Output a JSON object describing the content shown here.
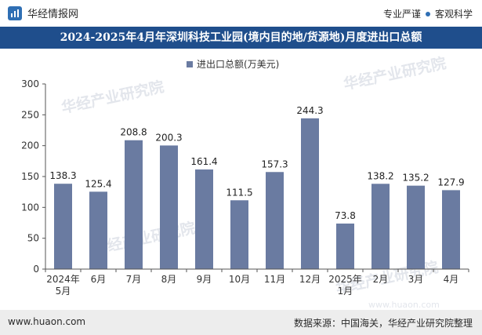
{
  "header": {
    "brand": "华经情报网",
    "tagline_part1": "专业严谨",
    "tagline_part2": "客观科学"
  },
  "title": "2024-2025年4月年深圳科技工业园(境内目的地/货源地)月度进出口总额",
  "footer": {
    "website": "www.huaon.com",
    "source": "数据来源：中国海关，华经产业研究院整理"
  },
  "watermark": {
    "text": "华经产业研究院",
    "url": "www.huaon.com"
  },
  "colors": {
    "bar": "#6a7ba1",
    "title_bg": "#1f4e8c",
    "brand": "#2f6fb4"
  },
  "chart_data": {
    "type": "bar",
    "title": "2024-2025年4月年深圳科技工业园(境内目的地/货源地)月度进出口总额",
    "legend": "进出口总额(万美元)",
    "legend_position": "top-center",
    "categories": [
      [
        "2024年",
        "5月"
      ],
      [
        "6月"
      ],
      [
        "7月"
      ],
      [
        "8月"
      ],
      [
        "9月"
      ],
      [
        "10月"
      ],
      [
        "11月"
      ],
      [
        "12月"
      ],
      [
        "2025年",
        "1月"
      ],
      [
        "2月"
      ],
      [
        "3月"
      ],
      [
        "4月"
      ]
    ],
    "values": [
      138.3,
      125.4,
      208.8,
      200.3,
      161.4,
      111.5,
      157.3,
      244.3,
      73.8,
      138.2,
      135.2,
      127.9
    ],
    "labels": [
      "138.3",
      "125.4",
      "208.8",
      "200.3",
      "161.4",
      "111.5",
      "157.3",
      "244.3",
      "73.8",
      "138.2",
      "135.2",
      "127.9"
    ],
    "ylim": [
      0,
      300
    ],
    "yticks": [
      0,
      50,
      100,
      150,
      200,
      250,
      300
    ],
    "xlabel": "",
    "ylabel": "",
    "grid": false
  }
}
